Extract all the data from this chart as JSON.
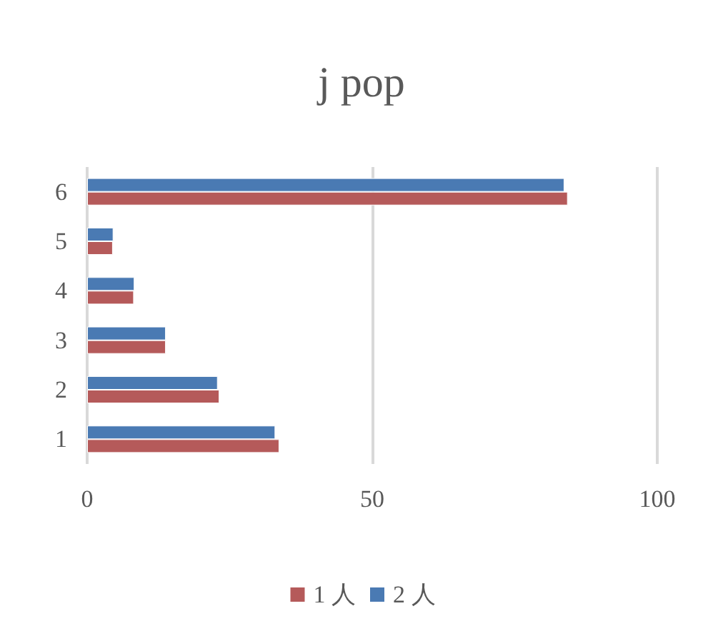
{
  "chart_data": {
    "type": "bar",
    "title": "j pop",
    "orientation": "horizontal",
    "categories": [
      "6",
      "5",
      "4",
      "3",
      "2",
      "1"
    ],
    "series": [
      {
        "name": "1 人",
        "color": "#b55a5a",
        "values": [
          84.3,
          4.5,
          8.2,
          13.8,
          23.2,
          33.7
        ]
      },
      {
        "name": "2 人",
        "color": "#4a7ab3",
        "values": [
          83.7,
          4.6,
          8.3,
          13.8,
          22.9,
          33.0
        ]
      }
    ],
    "xlim": [
      0,
      100
    ],
    "xticks": [
      0,
      50,
      100
    ],
    "grid": "x",
    "legend": "bottom"
  }
}
